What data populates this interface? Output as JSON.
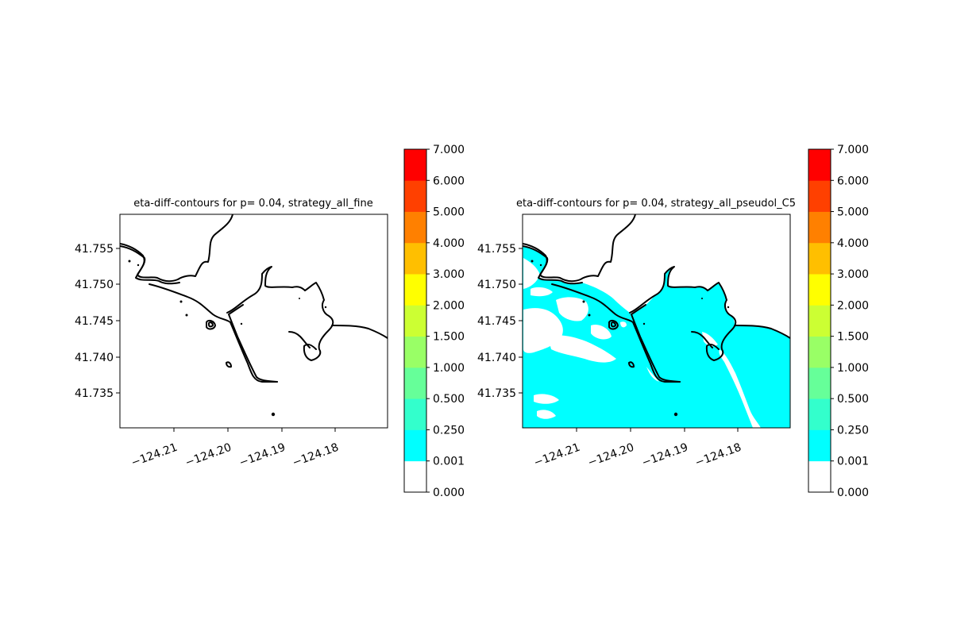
{
  "chart_data": [
    {
      "type": "heatmap",
      "title": "eta-diff-contours for p= 0.04, strategy_all_fine",
      "x_ticks": [
        "−124.21",
        "−124.20",
        "−124.19",
        "−124.18"
      ],
      "x_tick_values": [
        -124.21,
        -124.2,
        -124.19,
        -124.18
      ],
      "y_ticks": [
        "41.735",
        "41.740",
        "41.745",
        "41.750",
        "41.755"
      ],
      "y_tick_values": [
        41.735,
        41.74,
        41.745,
        41.75,
        41.755
      ],
      "xlim": [
        -124.22,
        -124.17
      ],
      "ylim": [
        41.7305,
        41.7597
      ],
      "filled_level": null,
      "colorbar": {
        "levels": [
          "0.000",
          "0.001",
          "0.250",
          "0.500",
          "1.000",
          "1.500",
          "2.000",
          "3.000",
          "4.000",
          "5.000",
          "6.000",
          "7.000"
        ],
        "colors": [
          "#ffffff",
          "#00ffff",
          "#33ffcc",
          "#66ff99",
          "#99ff66",
          "#ccff33",
          "#ffff00",
          "#ffbf00",
          "#ff8000",
          "#ff4000",
          "#ff0000"
        ]
      }
    },
    {
      "type": "heatmap",
      "title": "eta-diff-contours for p= 0.04, strategy_all_pseudol_C5",
      "x_ticks": [
        "−124.21",
        "−124.20",
        "−124.19",
        "−124.18"
      ],
      "x_tick_values": [
        -124.21,
        -124.2,
        -124.19,
        -124.18
      ],
      "y_ticks": [
        "41.735",
        "41.740",
        "41.745",
        "41.750",
        "41.755"
      ],
      "y_tick_values": [
        41.735,
        41.74,
        41.745,
        41.75,
        41.755
      ],
      "xlim": [
        -124.22,
        -124.17
      ],
      "ylim": [
        41.7305,
        41.7597
      ],
      "filled_level": "0.001–0.250 over water",
      "colorbar": {
        "levels": [
          "0.000",
          "0.001",
          "0.250",
          "0.500",
          "1.000",
          "1.500",
          "2.000",
          "3.000",
          "4.000",
          "5.000",
          "6.000",
          "7.000"
        ],
        "colors": [
          "#ffffff",
          "#00ffff",
          "#33ffcc",
          "#66ff99",
          "#99ff66",
          "#ccff33",
          "#ffff00",
          "#ffbf00",
          "#ff8000",
          "#ff4000",
          "#ff0000"
        ]
      }
    }
  ]
}
